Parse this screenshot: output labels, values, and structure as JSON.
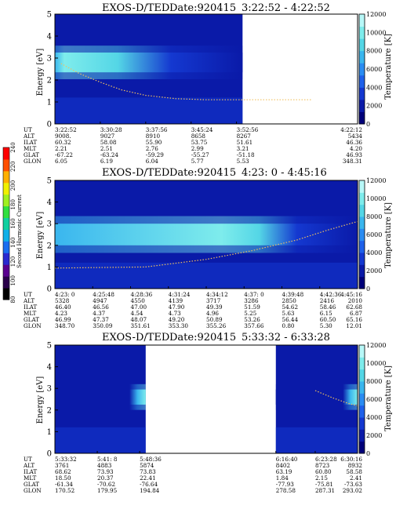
{
  "color_scales": {
    "temperature": [
      "#00007a",
      "#0a1aa8",
      "#1438d0",
      "#1e60ea",
      "#2a8cf2",
      "#3ab6ee",
      "#54d6e6",
      "#7eecec",
      "#b8f8f8"
    ],
    "harmonic": [
      "#000000",
      "#2a004a",
      "#5a0090",
      "#2a2ad0",
      "#1a6ef0",
      "#10b0e8",
      "#10d0a0",
      "#30e040",
      "#a0f020",
      "#f0f000",
      "#ffb000",
      "#ff5000",
      "#ff0000"
    ]
  },
  "harmonic_colorbar": {
    "label": "Second Harmonic Current",
    "ticks": [
      "80",
      "100",
      "120",
      "140",
      "160",
      "180",
      "200",
      "220",
      "240"
    ]
  },
  "row_labels": [
    "UT",
    "ALT",
    "ILAT",
    "MLT",
    "GLAT",
    "GLON"
  ],
  "chart_data": [
    {
      "type": "heatmap",
      "title": "EXOS-D/TED",
      "date": "Date:920415",
      "time_range": "3:22:52 - 4:22:52",
      "ylabel": "Energy [eV]",
      "ylim": [
        0,
        5
      ],
      "yticks": [
        "0",
        "1",
        "2",
        "3",
        "4",
        "5"
      ],
      "y2label": "Temperature [K]",
      "y2lim": [
        0,
        12000
      ],
      "y2ticks": [
        "0",
        "2000",
        "4000",
        "6000",
        "8000",
        "10000",
        "12000"
      ],
      "data_coverage": [
        [
          0,
          0.62
        ]
      ],
      "band": {
        "center_ev": 2.8,
        "width_ev": 0.45,
        "fade_start": 0.05,
        "fade_end": 0.62
      },
      "temperature_trace": [
        [
          0.02,
          2.75
        ],
        [
          0.08,
          2.3
        ],
        [
          0.15,
          1.9
        ],
        [
          0.22,
          1.55
        ],
        [
          0.3,
          1.3
        ],
        [
          0.4,
          1.15
        ],
        [
          0.5,
          1.1
        ],
        [
          0.6,
          1.1
        ],
        [
          0.85,
          1.1
        ]
      ],
      "columns": [
        {
          "pos": 0.0,
          "UT": "3:22:52",
          "ALT": "9008.",
          "ILAT": "60.32",
          "MLT": "2.21",
          "GLAT": "-67.22",
          "GLON": "6.05"
        },
        {
          "pos": 0.15,
          "UT": "3:30:28",
          "ALT": "9027",
          "ILAT": "58.08",
          "MLT": "2.51",
          "GLAT": "-63.24",
          "GLON": "6.19"
        },
        {
          "pos": 0.3,
          "UT": "3:37:56",
          "ALT": "8910",
          "ILAT": "55.90",
          "MLT": "2.76",
          "GLAT": "-59.29",
          "GLON": "6.04"
        },
        {
          "pos": 0.45,
          "UT": "3:45:24",
          "ALT": "8658",
          "ILAT": "53.75",
          "MLT": "2.99",
          "GLAT": "-55.27",
          "GLON": "5.77"
        },
        {
          "pos": 0.6,
          "UT": "3:52:56",
          "ALT": "8267",
          "ILAT": "51.61",
          "MLT": "3.21",
          "GLAT": "-51.18",
          "GLON": "5.53"
        },
        {
          "pos": 1.0,
          "UT": "4:22:12",
          "ALT": "5434",
          "ILAT": "46.36",
          "MLT": "4.20",
          "GLAT": "46.93",
          "GLON": "348.31"
        }
      ]
    },
    {
      "type": "heatmap",
      "title": "EXOS-D/TED",
      "date": "Date:920415",
      "time_range": "4:23: 0 - 4:45:16",
      "ylabel": "Energy [eV]",
      "ylim": [
        0,
        5
      ],
      "yticks": [
        "0",
        "1",
        "2",
        "3",
        "4",
        "5"
      ],
      "y2label": "Temperature [K]",
      "y2lim": [
        0,
        12000
      ],
      "y2ticks": [
        "0",
        "2000",
        "4000",
        "6000",
        "8000",
        "10000",
        "12000"
      ],
      "data_coverage": [
        [
          0,
          1
        ]
      ],
      "band": {
        "center_ev": 2.5,
        "width_ev": 0.5,
        "fade_start": 0.55,
        "fade_end": 0.8
      },
      "temperature_trace": [
        [
          0.0,
          0.95
        ],
        [
          0.3,
          1.0
        ],
        [
          0.5,
          1.35
        ],
        [
          0.65,
          1.75
        ],
        [
          0.8,
          2.25
        ],
        [
          0.9,
          2.7
        ],
        [
          1.0,
          3.1
        ]
      ],
      "columns": [
        {
          "pos": 0.0,
          "UT": "4:23: 0",
          "ALT": "5328",
          "ILAT": "46.40",
          "MLT": "4.23",
          "GLAT": "46.99",
          "GLON": "348.70"
        },
        {
          "pos": 0.125,
          "UT": "4:25:48",
          "ALT": "4947",
          "ILAT": "46.56",
          "MLT": "4.37",
          "GLAT": "47.37",
          "GLON": "350.09"
        },
        {
          "pos": 0.25,
          "UT": "4:28:36",
          "ALT": "4550",
          "ILAT": "47.00",
          "MLT": "4.54",
          "GLAT": "48.07",
          "GLON": "351.61"
        },
        {
          "pos": 0.375,
          "UT": "4:31:24",
          "ALT": "4139",
          "ILAT": "47.90",
          "MLT": "4.73",
          "GLAT": "49.20",
          "GLON": "353.30"
        },
        {
          "pos": 0.5,
          "UT": "4:34:12",
          "ALT": "3717",
          "ILAT": "49.39",
          "MLT": "4.96",
          "GLAT": "50.89",
          "GLON": "355.26"
        },
        {
          "pos": 0.625,
          "UT": "4:37: 0",
          "ALT": "3286",
          "ILAT": "51.59",
          "MLT": "5.25",
          "GLAT": "53.26",
          "GLON": "357.66"
        },
        {
          "pos": 0.75,
          "UT": "4:39:48",
          "ALT": "2850",
          "ILAT": "54.62",
          "MLT": "5.63",
          "GLAT": "56.44",
          "GLON": "0.80"
        },
        {
          "pos": 0.875,
          "UT": "4:42:36",
          "ALT": "2416",
          "ILAT": "58.46",
          "MLT": "6.15",
          "GLAT": "60.50",
          "GLON": "5.30"
        },
        {
          "pos": 1.0,
          "UT": "4:45:16",
          "ALT": "2010",
          "ILAT": "62.68",
          "MLT": "6.87",
          "GLAT": "65.16",
          "GLON": "12.01"
        }
      ]
    },
    {
      "type": "heatmap",
      "title": "EXOS-D/TED",
      "date": "Date:920415",
      "time_range": "5:33:32 - 6:33:28",
      "ylabel": "Energy [eV]",
      "ylim": [
        0,
        5
      ],
      "yticks": [
        "0",
        "1",
        "2",
        "3",
        "4",
        "5"
      ],
      "y2label": "Temperature [K]",
      "y2lim": [
        0,
        12000
      ],
      "y2ticks": [
        "0",
        "2000",
        "4000",
        "6000",
        "8000",
        "10000",
        "12000"
      ],
      "data_coverage": [
        [
          0,
          0.3
        ],
        [
          0.73,
          1
        ]
      ],
      "band": {
        "center_ev": 2.6,
        "width_ev": 0.35,
        "fade_start": 0.82,
        "fade_end": 1.0,
        "reverse": true
      },
      "temperature_trace": [
        [
          0.86,
          2.9
        ],
        [
          0.92,
          2.55
        ],
        [
          0.97,
          2.3
        ],
        [
          1.0,
          2.2
        ]
      ],
      "columns": [
        {
          "pos": 0.0,
          "UT": "5:33:32",
          "ALT": "3761",
          "ILAT": "68.62",
          "MLT": "18.50",
          "GLAT": "-61.34",
          "GLON": "170.52"
        },
        {
          "pos": 0.14,
          "UT": "5:41: 8",
          "ALT": "4883",
          "ILAT": "73.93",
          "MLT": "20.37",
          "GLAT": "-70.62",
          "GLON": "179.95"
        },
        {
          "pos": 0.28,
          "UT": "5:48:36",
          "ALT": "5874",
          "ILAT": "73.83",
          "MLT": "22.41",
          "GLAT": "-76.64",
          "GLON": "194.84"
        },
        {
          "pos": 0.73,
          "UT": "6:16:40",
          "ALT": "8402",
          "ILAT": "63.19",
          "MLT": "1.84",
          "GLAT": "-77.93",
          "GLON": "278.58"
        },
        {
          "pos": 0.86,
          "UT": "6:23:28",
          "ALT": "8723",
          "ILAT": "60.80",
          "MLT": "2.15",
          "GLAT": "-75.81",
          "GLON": "287.31"
        },
        {
          "pos": 1.0,
          "UT": "6:30:16",
          "ALT": "8932",
          "ILAT": "58.58",
          "MLT": "2.41",
          "GLAT": "-73.63",
          "GLON": "293.02"
        }
      ]
    }
  ]
}
